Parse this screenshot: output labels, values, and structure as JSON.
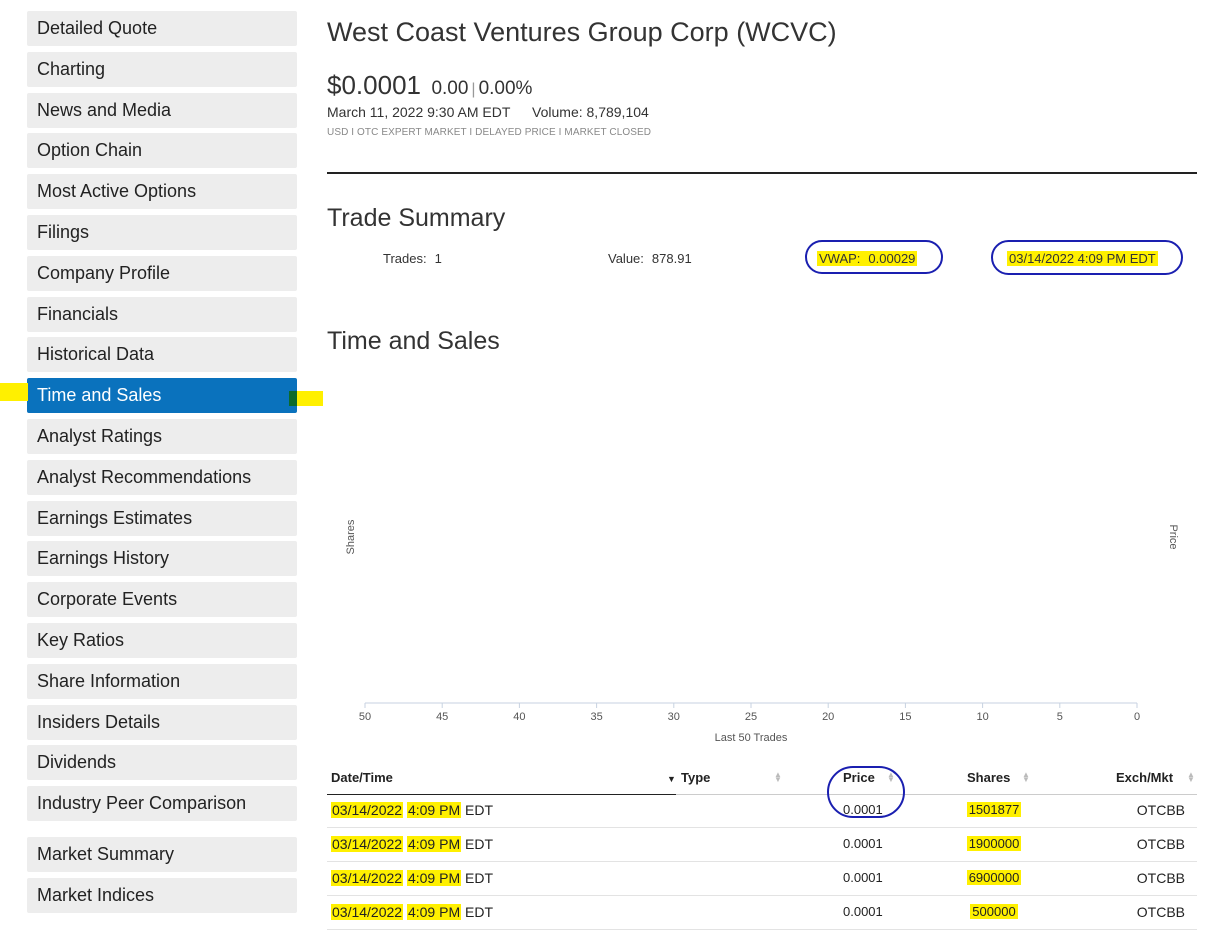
{
  "sidebar": {
    "items": [
      {
        "label": "Detailed Quote",
        "active": false
      },
      {
        "label": "Charting",
        "active": false
      },
      {
        "label": "News and Media",
        "active": false
      },
      {
        "label": "Option Chain",
        "active": false
      },
      {
        "label": "Most Active Options",
        "active": false
      },
      {
        "label": "Filings",
        "active": false
      },
      {
        "label": "Company Profile",
        "active": false
      },
      {
        "label": "Financials",
        "active": false
      },
      {
        "label": "Historical Data",
        "active": false
      },
      {
        "label": "Time and Sales",
        "active": true
      },
      {
        "label": "Analyst Ratings",
        "active": false
      },
      {
        "label": "Analyst Recommendations",
        "active": false
      },
      {
        "label": "Earnings Estimates",
        "active": false
      },
      {
        "label": "Earnings History",
        "active": false
      },
      {
        "label": "Corporate Events",
        "active": false
      },
      {
        "label": "Key Ratios",
        "active": false
      },
      {
        "label": "Share Information",
        "active": false
      },
      {
        "label": "Insiders Details",
        "active": false
      },
      {
        "label": "Dividends",
        "active": false
      },
      {
        "label": "Industry Peer Comparison",
        "active": false
      }
    ],
    "secondary_items": [
      {
        "label": "Market Summary"
      },
      {
        "label": "Market Indices"
      }
    ],
    "accent_color": "#0a72bd"
  },
  "header": {
    "title": "West Coast Ventures Group Corp (WCVC)",
    "price": "$0.0001",
    "change": "0.00",
    "separator": "|",
    "change_pct": "0.00%",
    "datetime": "March 11, 2022 9:30 AM EDT",
    "volume_label": "Volume:",
    "volume_value": "8,789,104",
    "meta": "USD I OTC EXPERT MARKET I DELAYED PRICE I MARKET CLOSED"
  },
  "trade_summary": {
    "title": "Trade Summary",
    "trades_label": "Trades:",
    "trades_value": "1",
    "value_label": "Value:",
    "value_value": "878.91",
    "vwap_label": "VWAP:",
    "vwap_value": "0.00029",
    "timestamp": "03/14/2022 4:09 PM EDT"
  },
  "time_and_sales": {
    "title": "Time and Sales"
  },
  "chart_data": {
    "type": "bar",
    "title": "",
    "xlabel": "Last 50 Trades",
    "ylabel": "Shares",
    "y2label": "Price",
    "x_ticks": [
      50,
      45,
      40,
      35,
      30,
      25,
      20,
      15,
      10,
      5,
      0
    ],
    "xlim": [
      50,
      0
    ],
    "series": []
  },
  "table": {
    "columns": [
      "Date/Time",
      "Type",
      "Price",
      "Shares",
      "Exch/Mkt"
    ],
    "rows": [
      {
        "date": "03/14/2022",
        "time": "4:09 PM",
        "tz": "EDT",
        "type": "",
        "price": "0.0001",
        "shares": "1501877",
        "exch": "OTCBB"
      },
      {
        "date": "03/14/2022",
        "time": "4:09 PM",
        "tz": "EDT",
        "type": "",
        "price": "0.0001",
        "shares": "1900000",
        "exch": "OTCBB"
      },
      {
        "date": "03/14/2022",
        "time": "4:09 PM",
        "tz": "EDT",
        "type": "",
        "price": "0.0001",
        "shares": "6900000",
        "exch": "OTCBB"
      },
      {
        "date": "03/14/2022",
        "time": "4:09 PM",
        "tz": "EDT",
        "type": "",
        "price": "0.0001",
        "shares": "500000",
        "exch": "OTCBB"
      }
    ]
  },
  "colors": {
    "highlight": "#fff000",
    "annotation_circle": "#1a1fb0"
  }
}
